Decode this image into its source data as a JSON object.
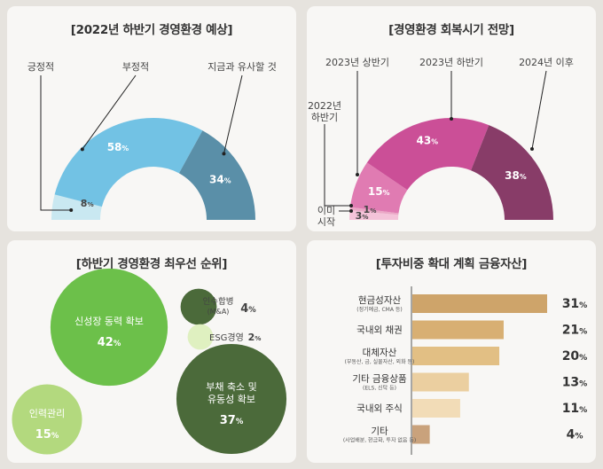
{
  "panels": [
    {
      "title": "[2022년 하반기 경영환경 예상]",
      "chart_data": {
        "type": "pie",
        "categories": [
          "긍정적",
          "부정적",
          "지금과 유사할 것"
        ],
        "values": [
          8,
          58,
          34
        ],
        "value_labels": [
          "8%",
          "58%",
          "34%"
        ],
        "colors": [
          "#c9e8f1",
          "#72c2e4",
          "#5a8fa8"
        ]
      }
    },
    {
      "title": "[경영환경 회복시기 전망]",
      "chart_data": {
        "type": "pie",
        "categories": [
          "이미 시작",
          "2022년 하반기",
          "2023년 상반기",
          "2023년 하반기",
          "2024년 이후"
        ],
        "label_lines": [
          [
            "이미",
            "시작"
          ],
          [
            "2022년",
            "하반기"
          ],
          [
            "2023년 상반기"
          ],
          [
            "2023년 하반기"
          ],
          [
            "2024년 이후"
          ]
        ],
        "values": [
          3,
          1,
          15,
          43,
          38
        ],
        "value_labels": [
          "3%",
          "1%",
          "15%",
          "43%",
          "38%"
        ],
        "colors": [
          "#f4c3d9",
          "#eba7c6",
          "#e07bb2",
          "#cb4f97",
          "#883c68"
        ]
      }
    },
    {
      "title": "[하반기 경영환경 최우선 순위]",
      "chart_data": {
        "type": "bubble",
        "items": [
          {
            "lines": [
              "신성장 동력 확보"
            ],
            "value": 42,
            "value_label": "42%",
            "color": "#6cc04a"
          },
          {
            "lines": [
              "부채 축소 및",
              "유동성 확보"
            ],
            "value": 37,
            "value_label": "37%",
            "color": "#4b6a3a"
          },
          {
            "lines": [
              "인력관리"
            ],
            "value": 15,
            "value_label": "15%",
            "color": "#b3d97e"
          },
          {
            "lines": [
              "인수합병",
              "(M&A)"
            ],
            "value": 4,
            "value_label": "4%",
            "color": "#4b6a3a"
          },
          {
            "lines": [
              "ESG경영"
            ],
            "value": 2,
            "value_label": "2%",
            "color": "#dff0c0"
          }
        ]
      }
    },
    {
      "title": "[투자비중 확대 계획 금융자산]",
      "chart_data": {
        "type": "bar",
        "orientation": "horizontal",
        "categories": [
          "현금성자산",
          "국내외 채권",
          "대체자산",
          "기타 금융상품",
          "국내외 주식",
          "기타"
        ],
        "sublabels": [
          "(정기예금, CMA 등)",
          "",
          "(부동산, 금, 실물자산, 외화 등)",
          "(ELS, 신탁 등)",
          "",
          "(사업배분, 현금화, 투자 없음 등)"
        ],
        "values": [
          31,
          21,
          20,
          13,
          11,
          4
        ],
        "value_labels": [
          "31%",
          "21%",
          "20%",
          "13%",
          "11%",
          "4%"
        ],
        "colors": [
          "#cea46a",
          "#d8af73",
          "#e2bf84",
          "#ebcfa0",
          "#f2dcb7",
          "#c9a27c"
        ],
        "xlim": [
          0,
          31
        ]
      }
    }
  ]
}
